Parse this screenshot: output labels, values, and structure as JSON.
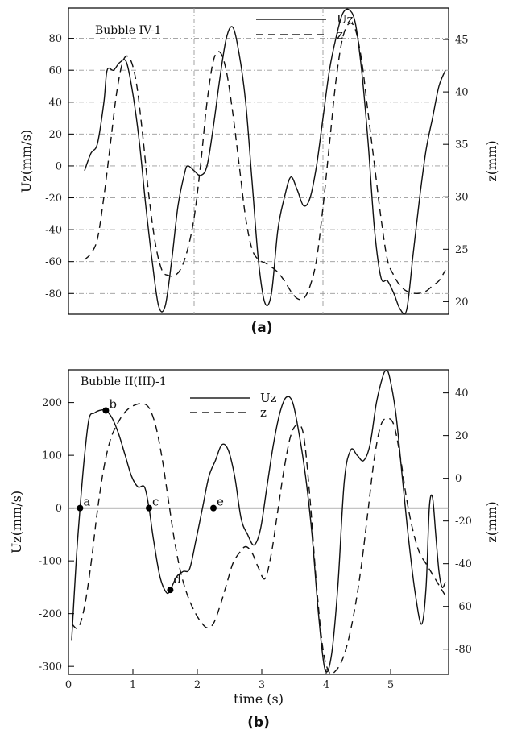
{
  "chart_data": [
    {
      "type": "line",
      "panel_caption": "(a)",
      "title": "Bubble IV-1",
      "ylabel": "Uz(mm/s)",
      "y2label": "z(mm)",
      "xlabel": "",
      "xlim": [
        0,
        5.9
      ],
      "ylim": [
        -93,
        99
      ],
      "y2lim": [
        18.8,
        48.0
      ],
      "yticks": [
        "80",
        "60",
        "40",
        "20",
        "0",
        "-20",
        "-40",
        "-60",
        "-80"
      ],
      "y2ticks": [
        "45",
        "40",
        "35",
        "30",
        "25",
        "20"
      ],
      "grid": true,
      "legend_position": "top-right",
      "series": [
        {
          "name": "Uz",
          "axis": "left",
          "style": "solid",
          "x": [
            0.25,
            0.35,
            0.45,
            0.55,
            0.6,
            0.7,
            0.8,
            0.9,
            1.0,
            1.1,
            1.2,
            1.3,
            1.4,
            1.5,
            1.6,
            1.7,
            1.8,
            1.85,
            1.95,
            2.05,
            2.15,
            2.25,
            2.35,
            2.45,
            2.55,
            2.65,
            2.75,
            2.85,
            2.95,
            3.05,
            3.15,
            3.25,
            3.35,
            3.45,
            3.55,
            3.65,
            3.75,
            3.85,
            3.95,
            4.05,
            4.15,
            4.25,
            4.35,
            4.45,
            4.55,
            4.65,
            4.75,
            4.85,
            4.95,
            5.05,
            5.15,
            5.25,
            5.35,
            5.45,
            5.55,
            5.65,
            5.75,
            5.85
          ],
          "y": [
            -3,
            8,
            14,
            40,
            60,
            60,
            65,
            65,
            45,
            15,
            -25,
            -60,
            -88,
            -88,
            -60,
            -25,
            -5,
            0,
            -3,
            -6,
            0,
            25,
            55,
            80,
            87,
            70,
            40,
            -10,
            -60,
            -86,
            -80,
            -40,
            -20,
            -7,
            -15,
            -25,
            -20,
            0,
            30,
            60,
            80,
            95,
            98,
            90,
            60,
            15,
            -40,
            -70,
            -72,
            -80,
            -90,
            -90,
            -55,
            -20,
            10,
            30,
            50,
            60
          ]
        },
        {
          "name": "z",
          "axis": "right",
          "style": "dashed",
          "x": [
            0.25,
            0.35,
            0.45,
            0.55,
            0.65,
            0.75,
            0.85,
            0.95,
            1.05,
            1.15,
            1.25,
            1.35,
            1.45,
            1.55,
            1.65,
            1.75,
            1.85,
            1.95,
            2.05,
            2.15,
            2.25,
            2.35,
            2.45,
            2.55,
            2.65,
            2.75,
            2.85,
            2.95,
            3.05,
            3.15,
            3.25,
            3.35,
            3.45,
            3.55,
            3.65,
            3.75,
            3.85,
            3.95,
            4.05,
            4.15,
            4.25,
            4.35,
            4.45,
            4.55,
            4.65,
            4.75,
            4.85,
            4.95,
            5.05,
            5.15,
            5.25,
            5.35,
            5.45,
            5.55,
            5.65,
            5.75,
            5.85
          ],
          "y": [
            24,
            24.6,
            26,
            30,
            35,
            40,
            43,
            43.2,
            41,
            36,
            30,
            25.5,
            23,
            22.5,
            22.5,
            23.2,
            25,
            28,
            33,
            39,
            43,
            43.8,
            42,
            38,
            33,
            28,
            25,
            24,
            23.7,
            23.3,
            22.8,
            22,
            21,
            20.3,
            20.3,
            21.5,
            24,
            29,
            35,
            41,
            45,
            46.5,
            46,
            43,
            38,
            33,
            28,
            24,
            22.5,
            21.5,
            21,
            20.8,
            20.8,
            21,
            21.5,
            22,
            23
          ]
        }
      ]
    },
    {
      "type": "line",
      "panel_caption": "(b)",
      "title": "Bubble II(III)-1",
      "ylabel": "Uz(mm/s)",
      "y2label": "z(mm)",
      "xlabel": "time (s)",
      "xlim": [
        0,
        5.9
      ],
      "ylim": [
        -315,
        262
      ],
      "y2lim": [
        -91.8,
        50.8
      ],
      "xticks": [
        "0",
        "1",
        "2",
        "3",
        "4",
        "5"
      ],
      "yticks": [
        "200",
        "100",
        "0",
        "-100",
        "-200",
        "-300"
      ],
      "y2ticks": [
        "40",
        "20",
        "0",
        "-20",
        "-40",
        "-60",
        "-80"
      ],
      "grid": "y=0 only",
      "legend_position": "top-center",
      "series": [
        {
          "name": "Uz",
          "axis": "left",
          "style": "solid",
          "x": [
            0.05,
            0.12,
            0.18,
            0.25,
            0.32,
            0.4,
            0.48,
            0.58,
            0.68,
            0.78,
            0.88,
            0.98,
            1.08,
            1.18,
            1.25,
            1.32,
            1.42,
            1.52,
            1.58,
            1.68,
            1.78,
            1.88,
            1.98,
            2.08,
            2.18,
            2.28,
            2.38,
            2.48,
            2.58,
            2.68,
            2.78,
            2.88,
            2.98,
            3.08,
            3.18,
            3.28,
            3.38,
            3.48,
            3.58,
            3.68,
            3.78,
            3.88,
            3.98,
            4.08,
            4.18,
            4.28,
            4.38,
            4.48,
            4.58,
            4.68,
            4.78,
            4.88,
            4.93,
            4.98,
            5.08,
            5.18,
            5.28,
            5.38,
            5.48,
            5.55,
            5.6,
            5.65,
            5.7,
            5.75,
            5.8,
            5.85
          ],
          "y": [
            -250,
            -100,
            0,
            100,
            170,
            180,
            185,
            185,
            170,
            140,
            100,
            60,
            40,
            40,
            0,
            -60,
            -130,
            -160,
            -155,
            -130,
            -120,
            -115,
            -60,
            0,
            60,
            90,
            120,
            110,
            60,
            -20,
            -50,
            -70,
            -40,
            40,
            120,
            180,
            210,
            200,
            140,
            60,
            -50,
            -200,
            -305,
            -280,
            -150,
            50,
            110,
            100,
            90,
            120,
            200,
            250,
            260,
            250,
            180,
            60,
            -60,
            -160,
            -220,
            -150,
            0,
            20,
            -50,
            -120,
            -150,
            -140
          ]
        },
        {
          "name": "z",
          "axis": "right",
          "style": "dashed",
          "x": [
            0.05,
            0.15,
            0.25,
            0.35,
            0.45,
            0.55,
            0.65,
            0.75,
            0.85,
            0.95,
            1.05,
            1.15,
            1.25,
            1.35,
            1.45,
            1.55,
            1.65,
            1.75,
            1.85,
            1.95,
            2.05,
            2.15,
            2.25,
            2.35,
            2.45,
            2.55,
            2.65,
            2.75,
            2.85,
            2.95,
            3.05,
            3.15,
            3.25,
            3.35,
            3.45,
            3.55,
            3.65,
            3.75,
            3.85,
            3.95,
            4.05,
            4.15,
            4.25,
            4.35,
            4.45,
            4.55,
            4.65,
            4.75,
            4.85,
            4.95,
            5.05,
            5.15,
            5.25,
            5.35,
            5.45,
            5.55,
            5.65,
            5.75,
            5.85
          ],
          "y": [
            -68,
            -70,
            -60,
            -40,
            -15,
            5,
            18,
            25,
            30,
            33,
            34.5,
            35,
            33,
            25,
            10,
            -10,
            -30,
            -45,
            -55,
            -62,
            -67,
            -70,
            -68,
            -60,
            -50,
            -40,
            -35,
            -32,
            -35,
            -42,
            -47,
            -35,
            -15,
            5,
            20,
            25,
            20,
            -10,
            -50,
            -80,
            -91,
            -90,
            -85,
            -75,
            -60,
            -40,
            -15,
            10,
            25,
            28,
            25,
            10,
            -10,
            -25,
            -35,
            -40,
            -45,
            -50,
            -55
          ]
        }
      ],
      "annotations": [
        {
          "label": "a",
          "x": 0.18,
          "y": 0
        },
        {
          "label": "b",
          "x": 0.58,
          "y": 185
        },
        {
          "label": "c",
          "x": 1.25,
          "y": 0
        },
        {
          "label": "d",
          "x": 1.58,
          "y": -155
        },
        {
          "label": "e",
          "x": 2.25,
          "y": 0
        }
      ]
    }
  ]
}
